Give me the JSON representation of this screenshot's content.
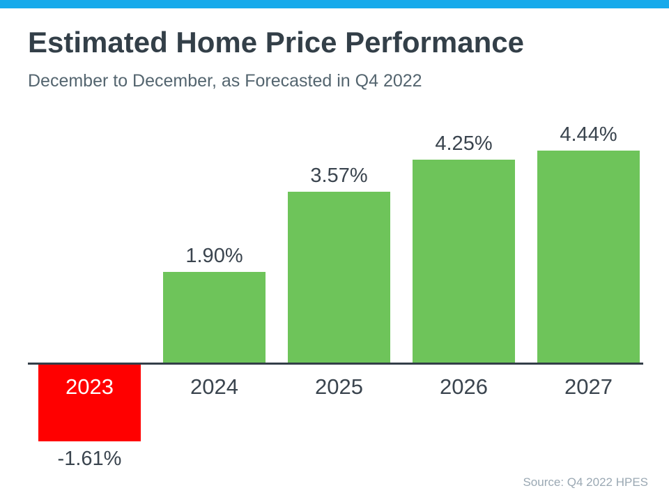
{
  "page": {
    "title": "Estimated Home Price Performance",
    "subtitle": "December to December, as Forecasted in Q4 2022",
    "source": "Source: Q4 2022 HPES"
  },
  "colors": {
    "accent_stripe": "#17AAEB",
    "positive_bar": "#6EC45A",
    "negative_bar": "#FF0000",
    "title_text": "#333F48",
    "subtitle_text": "#54656F",
    "label_text": "#3A444E",
    "axis_line": "#333E48",
    "source_text": "#9AA8B3",
    "background": "#FFFFFF",
    "negative_category_text": "#FFFFFF"
  },
  "chart_data": {
    "type": "bar",
    "title": "Estimated Home Price Performance",
    "subtitle": "December to December, as Forecasted in Q4 2022",
    "categories": [
      "2023",
      "2024",
      "2025",
      "2026",
      "2027"
    ],
    "values": [
      -1.61,
      1.9,
      3.57,
      4.25,
      4.44
    ],
    "value_labels": [
      "-1.61%",
      "1.90%",
      "3.57%",
      "4.25%",
      "4.44%"
    ],
    "bar_colors": [
      "#FF0000",
      "#6EC45A",
      "#6EC45A",
      "#6EC45A",
      "#6EC45A"
    ],
    "xlabel": "",
    "ylabel": "",
    "ylim": [
      -2,
      5
    ],
    "grid": false,
    "legend": false,
    "source": "Source: Q4 2022 HPES"
  }
}
